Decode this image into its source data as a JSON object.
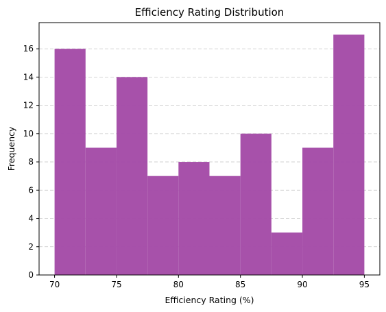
{
  "chart_data": {
    "type": "bar",
    "title": "Efficiency Rating Distribution",
    "xlabel": "Efficiency Rating (%)",
    "ylabel": "Frequency",
    "bin_edges": [
      70,
      72.5,
      75,
      77.5,
      80,
      82.5,
      85,
      87.5,
      90,
      92.5,
      95
    ],
    "values": [
      16,
      9,
      14,
      7,
      8,
      7,
      10,
      3,
      9,
      17
    ],
    "xlim": [
      68.75,
      96.25
    ],
    "ylim": [
      0,
      17.85
    ],
    "xticks": [
      70,
      75,
      80,
      85,
      90,
      95
    ],
    "yticks": [
      0,
      2,
      4,
      6,
      8,
      10,
      12,
      14,
      16
    ],
    "grid": "y dashed",
    "bar_color": "#a54ea8"
  }
}
